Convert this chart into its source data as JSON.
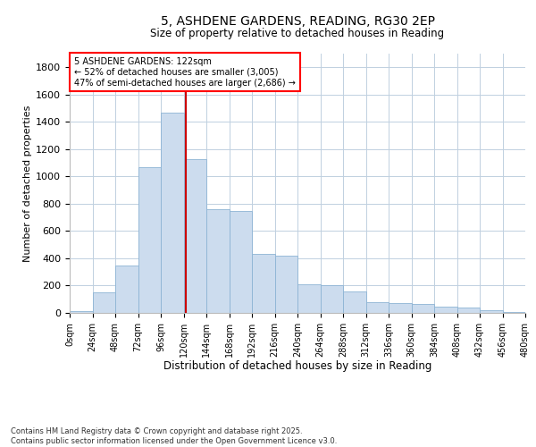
{
  "title": "5, ASHDENE GARDENS, READING, RG30 2EP",
  "subtitle": "Size of property relative to detached houses in Reading",
  "xlabel": "Distribution of detached houses by size in Reading",
  "ylabel": "Number of detached properties",
  "property_size": 122,
  "annotation_line1": "5 ASHDENE GARDENS: 122sqm",
  "annotation_line2": "← 52% of detached houses are smaller (3,005)",
  "annotation_line3": "47% of semi-detached houses are larger (2,686) →",
  "footnote1": "Contains HM Land Registry data © Crown copyright and database right 2025.",
  "footnote2": "Contains public sector information licensed under the Open Government Licence v3.0.",
  "bar_color": "#ccdcee",
  "bar_edge_color": "#8db4d4",
  "vline_color": "#cc0000",
  "background_color": "#ffffff",
  "grid_color": "#c0d0e0",
  "bin_edges": [
    0,
    24,
    48,
    72,
    96,
    120,
    144,
    168,
    192,
    216,
    240,
    264,
    288,
    312,
    336,
    360,
    384,
    408,
    432,
    456,
    480
  ],
  "bar_heights": [
    10,
    150,
    350,
    1070,
    1470,
    1130,
    760,
    750,
    430,
    420,
    210,
    200,
    155,
    80,
    70,
    65,
    45,
    40,
    20,
    5
  ],
  "ylim": [
    0,
    1900
  ],
  "yticks": [
    0,
    200,
    400,
    600,
    800,
    1000,
    1200,
    1400,
    1600,
    1800
  ]
}
